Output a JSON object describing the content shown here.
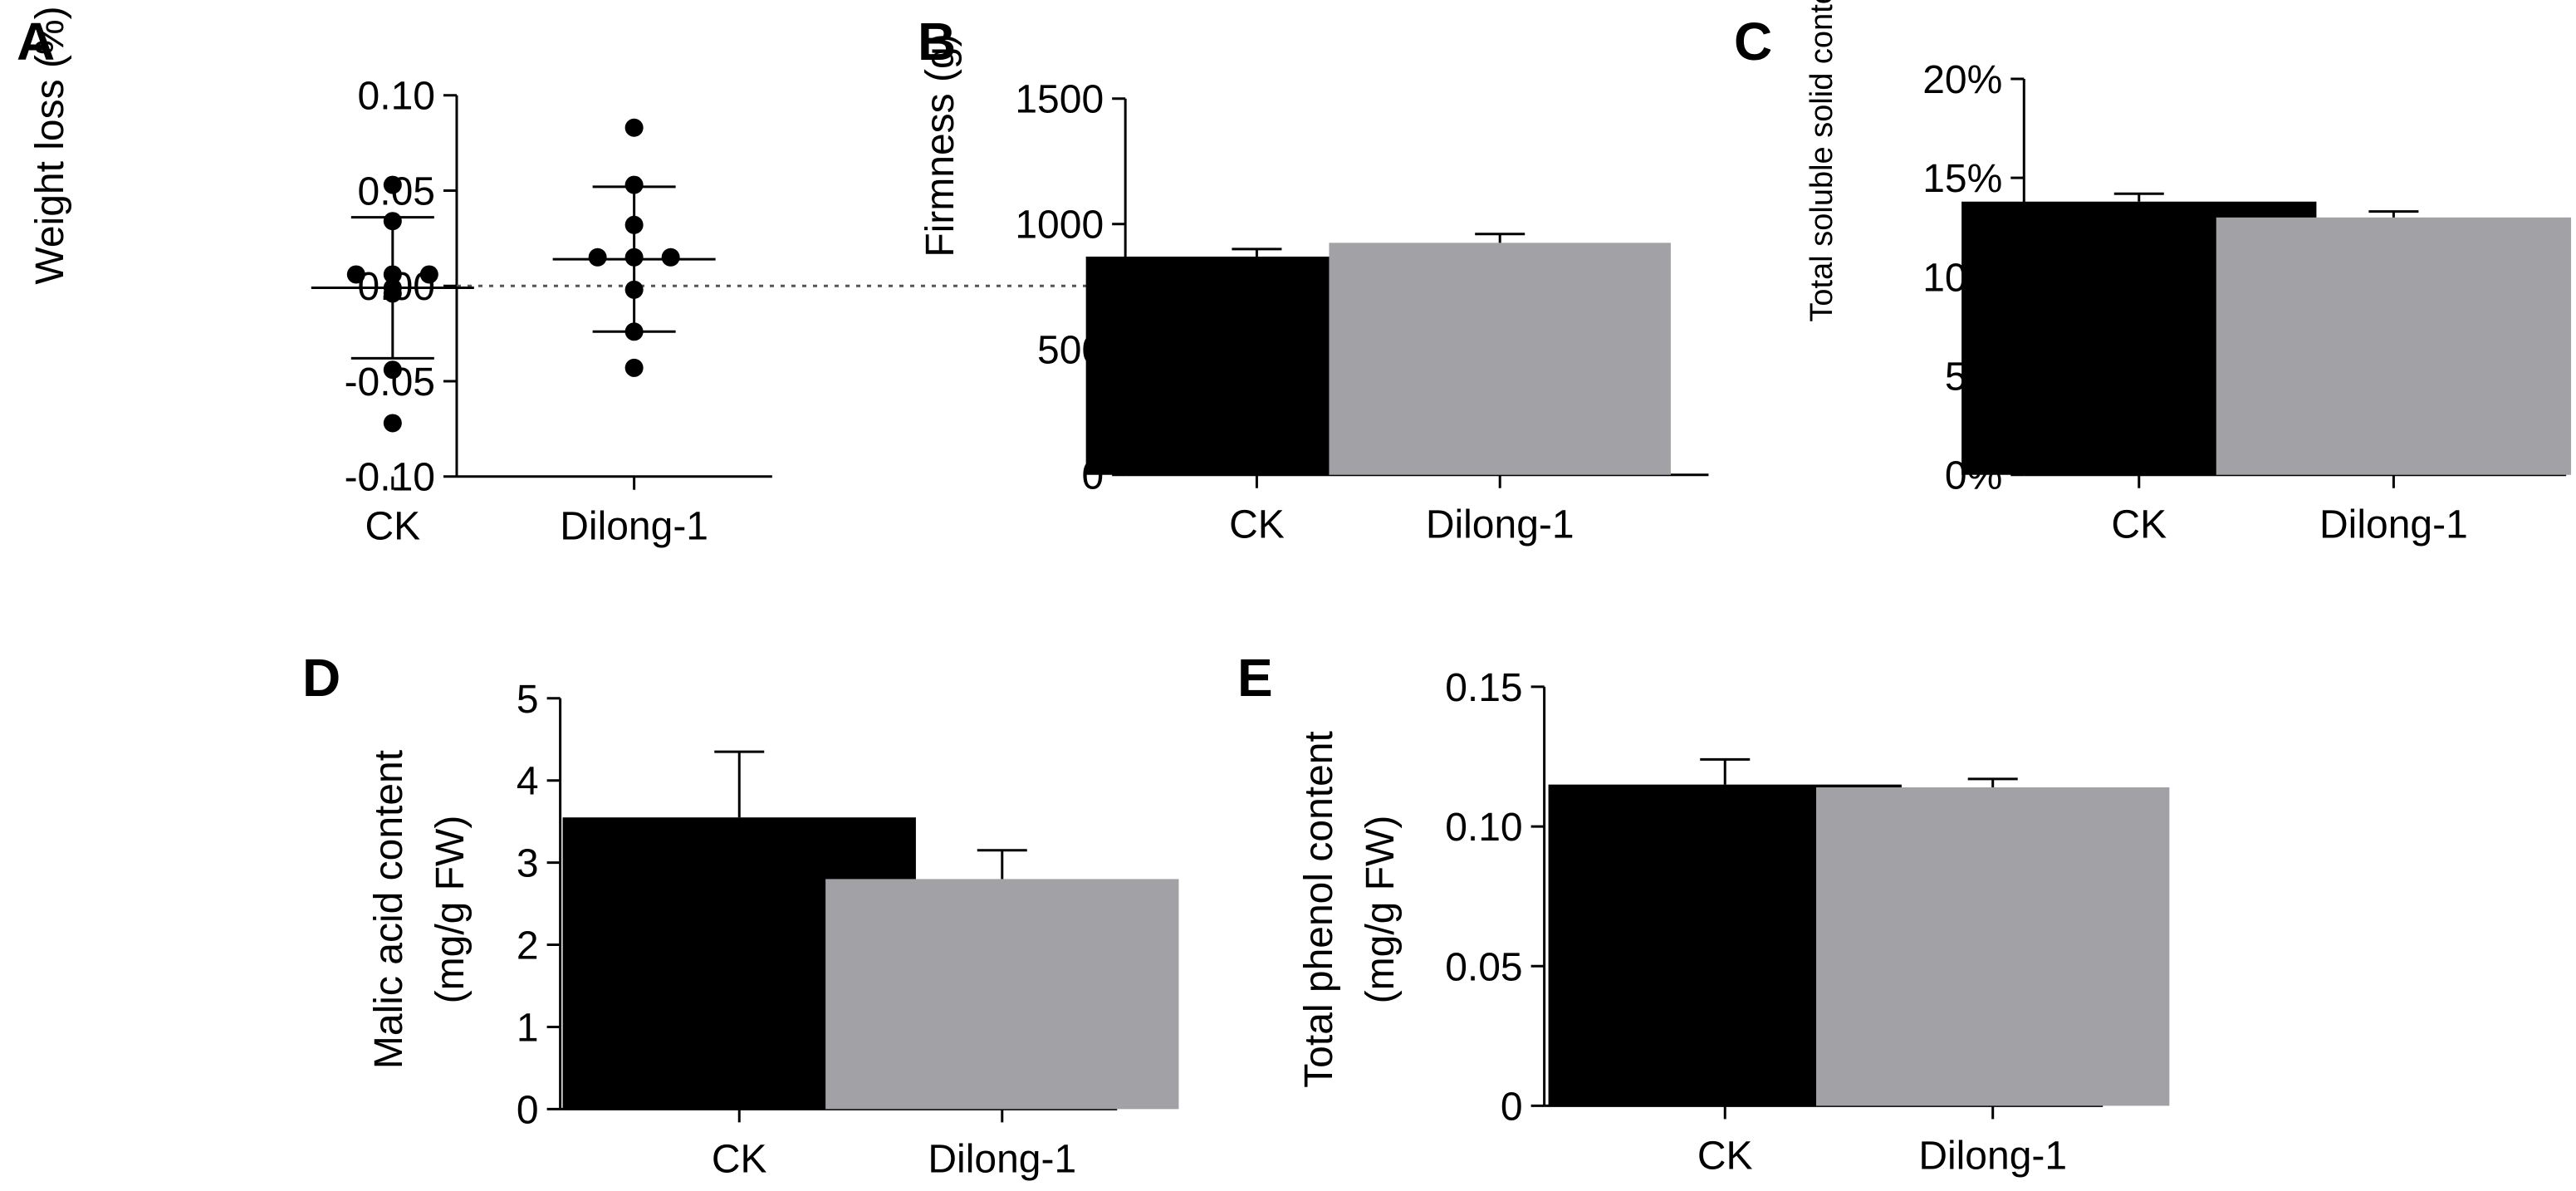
{
  "figure": {
    "background": "#ffffff",
    "colors": {
      "ck": "#000000",
      "dilong": "#a2a2a6",
      "axis": "#000000",
      "zero_line": "#555555"
    }
  },
  "chart_data": [
    {
      "panel": "A",
      "type": "scatter",
      "title": "",
      "xlabel": "",
      "ylabel": "Weight loss (%)",
      "ylim": [
        -0.1,
        0.1
      ],
      "yticks": [
        "0.10",
        "0.05",
        "0.00",
        "-0.05",
        "-0.10"
      ],
      "ytick_values": [
        0.1,
        0.05,
        0.0,
        -0.05,
        -0.1
      ],
      "categories": [
        "CK",
        "Dilong-1"
      ],
      "zero_line": true,
      "series": [
        {
          "name": "CK",
          "points": [
            0.053,
            0.034,
            0.006,
            0.006,
            0.006,
            -0.001,
            -0.004,
            -0.044,
            -0.072
          ],
          "mean": -0.001,
          "sd": 0.037
        },
        {
          "name": "Dilong-1",
          "points": [
            0.083,
            0.053,
            0.032,
            0.015,
            0.015,
            0.015,
            -0.002,
            -0.024,
            -0.043
          ],
          "mean": 0.014,
          "sd": 0.038
        }
      ]
    },
    {
      "panel": "B",
      "type": "bar",
      "title": "",
      "xlabel": "",
      "ylabel": "Firmness (g)",
      "ylim": [
        0,
        1500
      ],
      "yticks": [
        "1500",
        "1000",
        "500",
        "0"
      ],
      "ytick_values": [
        1500,
        1000,
        500,
        0
      ],
      "categories": [
        "CK",
        "Dilong-1"
      ],
      "values": [
        870,
        925
      ],
      "errors": [
        30,
        35
      ]
    },
    {
      "panel": "C",
      "type": "bar",
      "title": "",
      "xlabel": "",
      "ylabel": "Total soluble solid content",
      "ylim": [
        0,
        20
      ],
      "yticks": [
        "20%",
        "15%",
        "10%",
        "5%",
        "0%"
      ],
      "ytick_values": [
        20,
        15,
        10,
        5,
        0
      ],
      "categories": [
        "CK",
        "Dilong-1"
      ],
      "values": [
        13.8,
        13.0
      ],
      "errors": [
        0.4,
        0.3
      ]
    },
    {
      "panel": "D",
      "type": "bar",
      "title": "",
      "xlabel": "",
      "ylabel": "Malic acid content",
      "ylabel2": "(mg/g FW)",
      "ylim": [
        0,
        5
      ],
      "yticks": [
        "5",
        "4",
        "3",
        "2",
        "1",
        "0"
      ],
      "ytick_values": [
        5,
        4,
        3,
        2,
        1,
        0
      ],
      "categories": [
        "CK",
        "Dilong-1"
      ],
      "values": [
        3.55,
        2.8
      ],
      "errors": [
        0.8,
        0.35
      ]
    },
    {
      "panel": "E",
      "type": "bar",
      "title": "",
      "xlabel": "",
      "ylabel": "Total phenol content",
      "ylabel2": "(mg/g FW)",
      "ylim": [
        0,
        0.15
      ],
      "yticks": [
        "0.15",
        "0.10",
        "0.05",
        "0"
      ],
      "ytick_values": [
        0.15,
        0.1,
        0.05,
        0
      ],
      "categories": [
        "CK",
        "Dilong-1"
      ],
      "values": [
        0.115,
        0.114
      ],
      "errors": [
        0.009,
        0.003
      ]
    }
  ]
}
